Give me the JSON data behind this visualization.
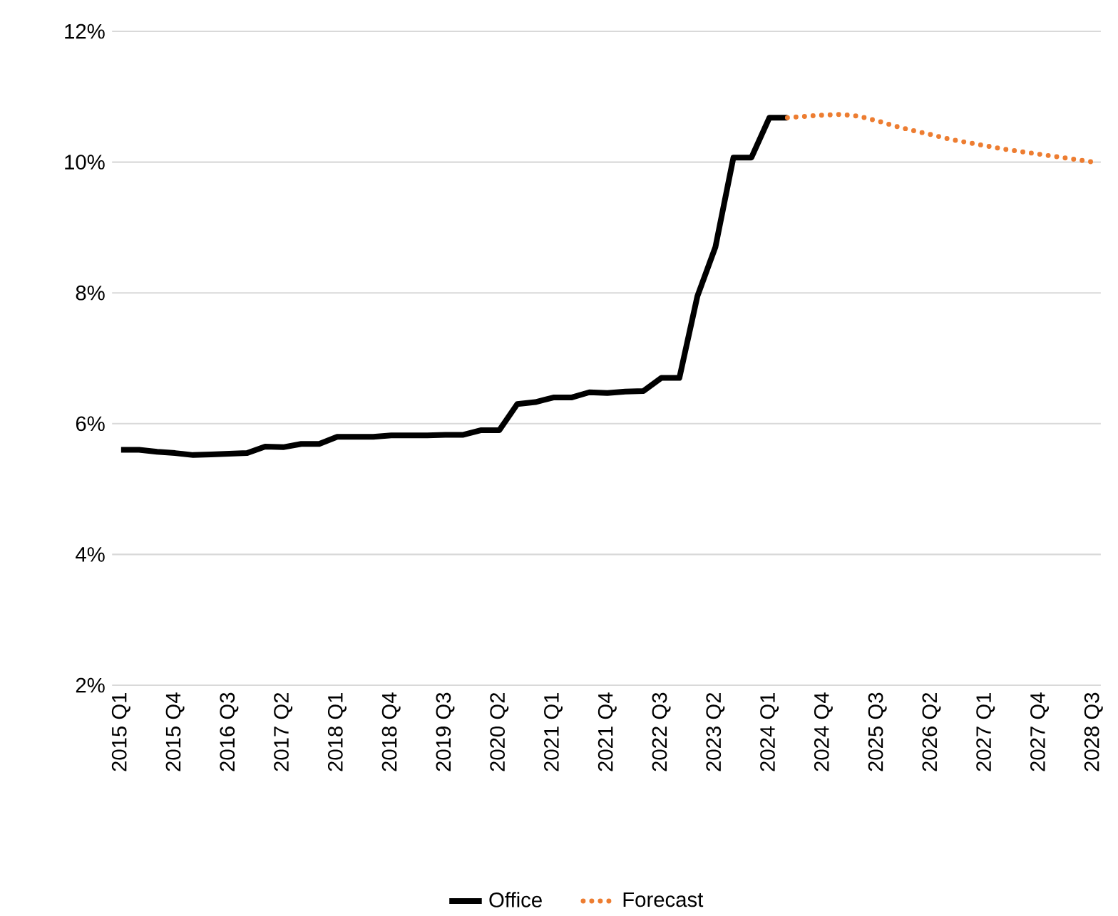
{
  "chart_data": {
    "type": "line",
    "categories": [
      "2015 Q1",
      null,
      null,
      "2015 Q4",
      null,
      null,
      "2016 Q3",
      null,
      null,
      "2017 Q2",
      null,
      null,
      "2018 Q1",
      null,
      null,
      "2018 Q4",
      null,
      null,
      "2019 Q3",
      null,
      null,
      "2020 Q2",
      null,
      null,
      "2021 Q1",
      null,
      null,
      "2021 Q4",
      null,
      null,
      "2022 Q3",
      null,
      null,
      "2023 Q2",
      null,
      null,
      "2024 Q1",
      null,
      null,
      "2024 Q4",
      null,
      null,
      "2025 Q3",
      null,
      null,
      "2026 Q2",
      null,
      null,
      "2027 Q1",
      null,
      null,
      "2027 Q4",
      null,
      null,
      "2028 Q3"
    ],
    "series": [
      {
        "name": "Office",
        "color": "#000000",
        "line_style": "solid",
        "values": [
          5.6,
          5.6,
          5.57,
          5.55,
          5.52,
          5.53,
          5.54,
          5.55,
          5.65,
          5.64,
          5.69,
          5.69,
          5.8,
          5.8,
          5.8,
          5.82,
          5.82,
          5.82,
          5.83,
          5.83,
          5.9,
          5.9,
          6.3,
          6.33,
          6.4,
          6.4,
          6.48,
          6.47,
          6.49,
          6.5,
          6.7,
          6.7,
          7.95,
          8.7,
          10.07,
          10.07,
          10.68,
          10.68,
          null,
          null,
          null,
          null,
          null,
          null,
          null,
          null,
          null,
          null,
          null,
          null,
          null,
          null,
          null,
          null,
          null
        ]
      },
      {
        "name": "Forecast",
        "color": "#ed7d31",
        "line_style": "dotted",
        "values": [
          null,
          null,
          null,
          null,
          null,
          null,
          null,
          null,
          null,
          null,
          null,
          null,
          null,
          null,
          null,
          null,
          null,
          null,
          null,
          null,
          null,
          null,
          null,
          null,
          null,
          null,
          null,
          null,
          null,
          null,
          null,
          null,
          null,
          null,
          null,
          null,
          null,
          10.68,
          10.7,
          10.72,
          10.73,
          10.7,
          10.63,
          10.55,
          10.48,
          10.42,
          10.35,
          10.3,
          10.25,
          10.2,
          10.16,
          10.12,
          10.08,
          10.04,
          10.0
        ]
      }
    ],
    "ylim": [
      2,
      12
    ],
    "yticks": [
      {
        "value": 2,
        "label": "2%"
      },
      {
        "value": 4,
        "label": "4%"
      },
      {
        "value": 6,
        "label": "6%"
      },
      {
        "value": 8,
        "label": "8%"
      },
      {
        "value": 10,
        "label": "10%"
      },
      {
        "value": 12,
        "label": "12%"
      }
    ],
    "grid": "y",
    "legend": "bottom",
    "marker": "none"
  }
}
